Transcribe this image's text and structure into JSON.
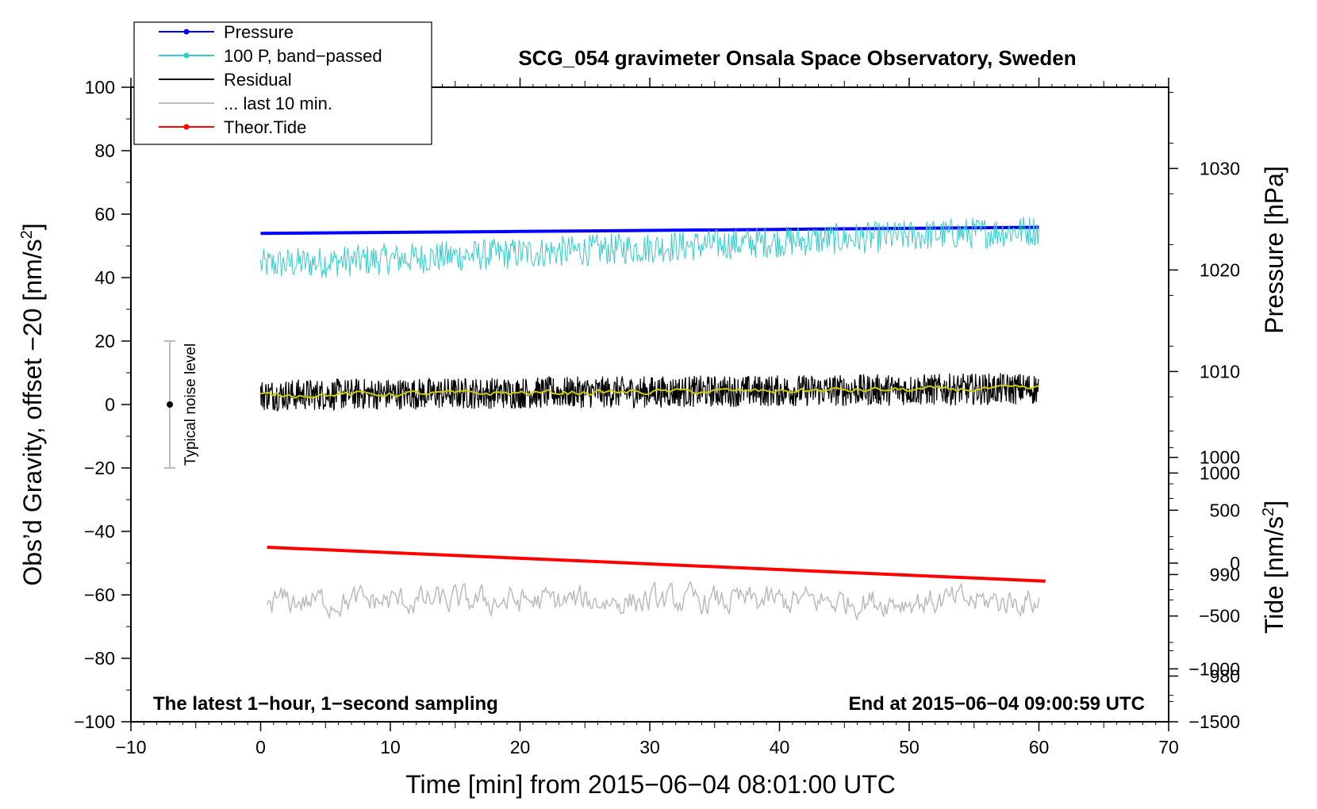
{
  "chart_data": {
    "type": "line",
    "title": "SCG_054 gravimeter Onsala Space Observatory, Sweden",
    "xlabel": "Time [min] from 2015−06−04 08:01:00 UTC",
    "ylabel_main": "Obs’d Gravity, offset −20 [nm/s",
    "ylabel_sup": "2",
    "ylabel_close": "]",
    "ylabel_pressure": "Pressure [hPa]",
    "ylabel_tide_main": "Tide [nm/s",
    "ylabel_tide_sup": "2",
    "ylabel_tide_close": "]",
    "xlim": [
      -10,
      70
    ],
    "ylim": [
      -100,
      100
    ],
    "pressure_lim": [
      975.5,
      1038
    ],
    "tide_lim": [
      -1500,
      4500
    ],
    "x_ticks": [
      "−10",
      "0",
      "10",
      "20",
      "30",
      "40",
      "50",
      "60",
      "70"
    ],
    "y_ticks": [
      "−100",
      "−80",
      "−60",
      "−40",
      "−20",
      "0",
      "20",
      "40",
      "60",
      "80",
      "100"
    ],
    "pressure_ticks": [
      "980",
      "990",
      "1000",
      "1010",
      "1020",
      "1030"
    ],
    "tide_ticks": [
      "−1500",
      "−1000",
      "−500",
      "0",
      "500",
      "1000"
    ],
    "left_annotation": "The latest 1−hour, 1−second sampling",
    "right_annotation": "End at 2015−06−04 09:00:59 UTC",
    "noise_label": "Typical noise level",
    "noise_bar": {
      "x": -7,
      "center": 0,
      "low": -20,
      "high": 20
    },
    "legend": [
      {
        "label": "Pressure",
        "color": "#0000ff",
        "marker": true
      },
      {
        "label": "100 P, band−passed",
        "color": "#33cccc",
        "marker": true
      },
      {
        "label": "Residual",
        "color": "#000000",
        "marker": false
      },
      {
        "label": "... last 10 min.",
        "color": "#bbbbbb",
        "marker": false
      },
      {
        "label": "Theor.Tide",
        "color": "#ff0000",
        "marker": true
      }
    ],
    "series": [
      {
        "name": "Pressure",
        "axis": "pressure",
        "color": "#0000ff",
        "x": [
          0,
          10,
          20,
          30,
          40,
          50,
          60
        ],
        "values": [
          1023.6,
          1023.7,
          1023.8,
          1023.9,
          1024.0,
          1024.1,
          1024.2
        ]
      },
      {
        "name": "100 P, band−passed",
        "axis": "left",
        "color": "#33cccc",
        "x_start": 0,
        "x_end": 60,
        "trend_start": 44,
        "trend_end": 55,
        "noise_amplitude": 5
      },
      {
        "name": "Residual",
        "axis": "left",
        "color": "#000000",
        "x_start": 0,
        "x_end": 60,
        "trend_start": 3,
        "trend_end": 5,
        "noise_amplitude": 5
      },
      {
        "name": "Residual smoothed",
        "axis": "left",
        "color": "#cccc00",
        "x_start": 0,
        "x_end": 60,
        "trend_start": 3,
        "trend_end": 5,
        "noise_amplitude": 0.8
      },
      {
        "name": "... last 10 min.",
        "axis": "left",
        "color": "#bbbbbb",
        "x_start": 0.5,
        "x_end": 60,
        "trend_start": -62,
        "trend_end": -62,
        "noise_amplitude": 4
      },
      {
        "name": "Theor.Tide",
        "axis": "tide",
        "color": "#ff0000",
        "x": [
          0.5,
          60.5
        ],
        "values": [
          150,
          -170
        ]
      }
    ]
  }
}
